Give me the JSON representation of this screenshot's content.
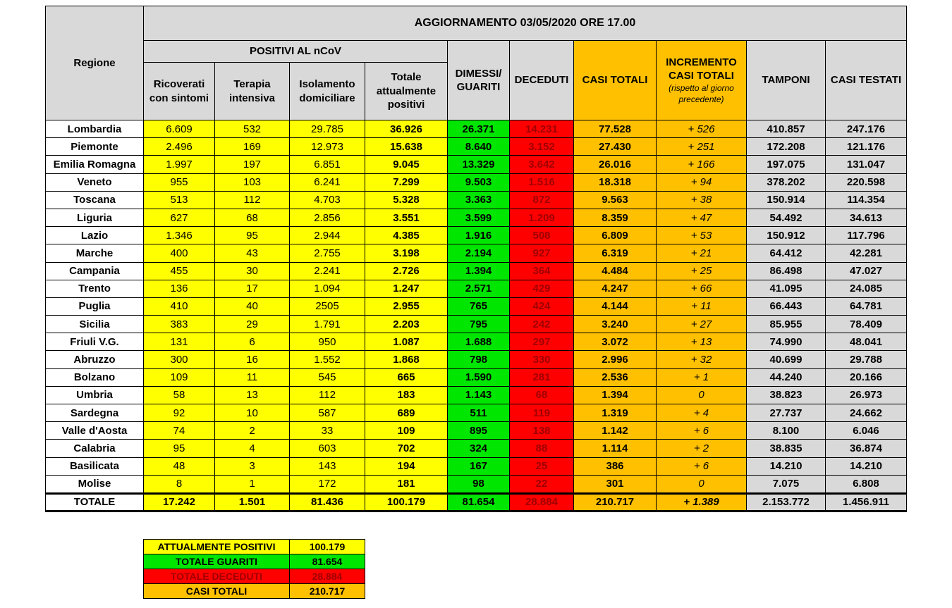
{
  "header": {
    "title": "AGGIORNAMENTO 03/05/2020 ORE 17.00",
    "regione": "Regione",
    "positivi_group": "POSITIVI AL nCoV",
    "ricoverati": "Ricoverati con sintomi",
    "terapia": "Terapia intensiva",
    "isolamento": "Isolamento domiciliare",
    "totale_positivi": "Totale attualmente positivi",
    "dimessi": "DIMESSI/ GUARITI",
    "deceduti": "DECEDUTI",
    "casi_totali": "CASI TOTALI",
    "incremento": "INCREMENTO CASI TOTALI",
    "incremento_note": "(rispetto al giorno precedente)",
    "tamponi": "TAMPONI",
    "casi_testati": "CASI TESTATI"
  },
  "colors": {
    "yellow": "#ffff00",
    "green": "#00e600",
    "red": "#ff0000",
    "orange": "#ffc000",
    "gray": "#d9d9d9"
  },
  "rows": [
    [
      "Lombardia",
      "6.609",
      "532",
      "29.785",
      "36.926",
      "26.371",
      "14.231",
      "77.528",
      "+ 526",
      "410.857",
      "247.176"
    ],
    [
      "Piemonte",
      "2.496",
      "169",
      "12.973",
      "15.638",
      "8.640",
      "3.152",
      "27.430",
      "+ 251",
      "172.208",
      "121.176"
    ],
    [
      "Emilia Romagna",
      "1.997",
      "197",
      "6.851",
      "9.045",
      "13.329",
      "3.642",
      "26.016",
      "+ 166",
      "197.075",
      "131.047"
    ],
    [
      "Veneto",
      "955",
      "103",
      "6.241",
      "7.299",
      "9.503",
      "1.516",
      "18.318",
      "+ 94",
      "378.202",
      "220.598"
    ],
    [
      "Toscana",
      "513",
      "112",
      "4.703",
      "5.328",
      "3.363",
      "872",
      "9.563",
      "+ 38",
      "150.914",
      "114.354"
    ],
    [
      "Liguria",
      "627",
      "68",
      "2.856",
      "3.551",
      "3.599",
      "1.209",
      "8.359",
      "+ 47",
      "54.492",
      "34.613"
    ],
    [
      "Lazio",
      "1.346",
      "95",
      "2.944",
      "4.385",
      "1.916",
      "508",
      "6.809",
      "+ 53",
      "150.912",
      "117.796"
    ],
    [
      "Marche",
      "400",
      "43",
      "2.755",
      "3.198",
      "2.194",
      "927",
      "6.319",
      "+ 21",
      "64.412",
      "42.281"
    ],
    [
      "Campania",
      "455",
      "30",
      "2.241",
      "2.726",
      "1.394",
      "364",
      "4.484",
      "+ 25",
      "86.498",
      "47.027"
    ],
    [
      "Trento",
      "136",
      "17",
      "1.094",
      "1.247",
      "2.571",
      "429",
      "4.247",
      "+ 66",
      "41.095",
      "24.085"
    ],
    [
      "Puglia",
      "410",
      "40",
      "2505",
      "2.955",
      "765",
      "424",
      "4.144",
      "+ 11",
      "66.443",
      "64.781"
    ],
    [
      "Sicilia",
      "383",
      "29",
      "1.791",
      "2.203",
      "795",
      "242",
      "3.240",
      "+ 27",
      "85.955",
      "78.409"
    ],
    [
      "Friuli V.G.",
      "131",
      "6",
      "950",
      "1.087",
      "1.688",
      "297",
      "3.072",
      "+ 13",
      "74.990",
      "48.041"
    ],
    [
      "Abruzzo",
      "300",
      "16",
      "1.552",
      "1.868",
      "798",
      "330",
      "2.996",
      "+ 32",
      "40.699",
      "29.788"
    ],
    [
      "Bolzano",
      "109",
      "11",
      "545",
      "665",
      "1.590",
      "281",
      "2.536",
      "+ 1",
      "44.240",
      "20.166"
    ],
    [
      "Umbria",
      "58",
      "13",
      "112",
      "183",
      "1.143",
      "68",
      "1.394",
      "0",
      "38.823",
      "26.973"
    ],
    [
      "Sardegna",
      "92",
      "10",
      "587",
      "689",
      "511",
      "119",
      "1.319",
      "+ 4",
      "27.737",
      "24.662"
    ],
    [
      "Valle d'Aosta",
      "74",
      "2",
      "33",
      "109",
      "895",
      "138",
      "1.142",
      "+ 6",
      "8.100",
      "6.046"
    ],
    [
      "Calabria",
      "95",
      "4",
      "603",
      "702",
      "324",
      "88",
      "1.114",
      "+ 2",
      "38.835",
      "36.874"
    ],
    [
      "Basilicata",
      "48",
      "3",
      "143",
      "194",
      "167",
      "25",
      "386",
      "+ 6",
      "14.210",
      "14.210"
    ],
    [
      "Molise",
      "8",
      "1",
      "172",
      "181",
      "98",
      "22",
      "301",
      "0",
      "7.075",
      "6.808"
    ]
  ],
  "totale": [
    "TOTALE",
    "17.242",
    "1.501",
    "81.436",
    "100.179",
    "81.654",
    "28.884",
    "210.717",
    "+ 1.389",
    "2.153.772",
    "1.456.911"
  ],
  "summary": [
    {
      "label": "ATTUALMENTE POSITIVI",
      "value": "100.179"
    },
    {
      "label": "TOTALE GUARITI",
      "value": "81.654"
    },
    {
      "label": "TOTALE DECEDUTI",
      "value": "28.884"
    },
    {
      "label": "CASI TOTALI",
      "value": "210.717"
    }
  ]
}
